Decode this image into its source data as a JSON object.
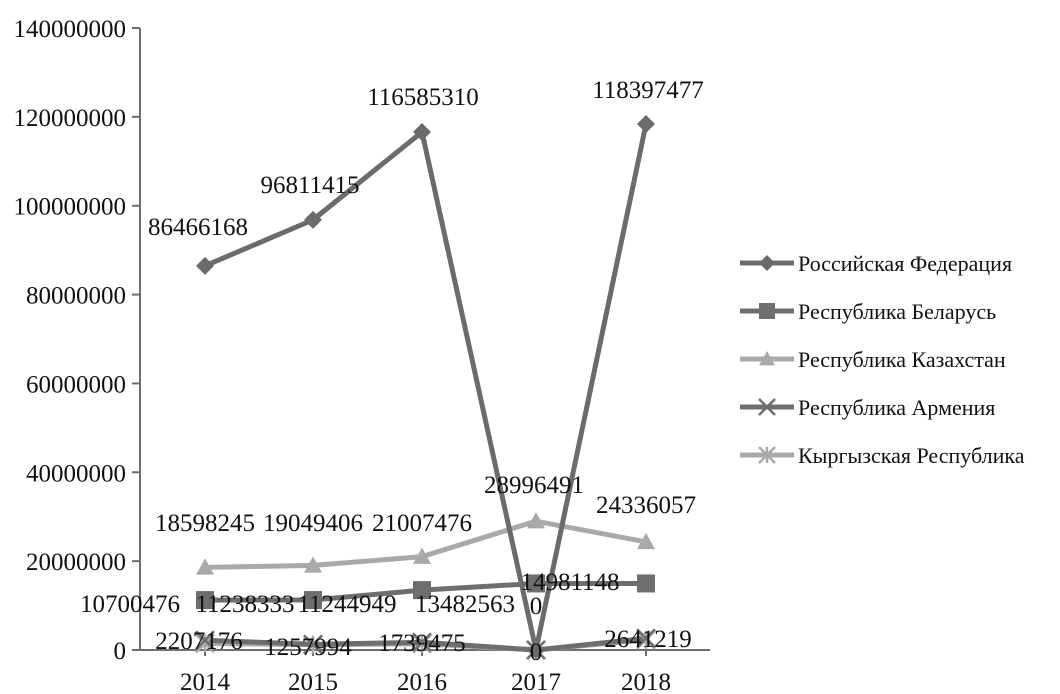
{
  "chart_data": {
    "type": "line",
    "title": "",
    "xlabel": "",
    "ylabel": "",
    "categories": [
      "2014",
      "2015",
      "2016",
      "2017",
      "2018"
    ],
    "ylim": [
      0,
      140000000
    ],
    "yticks": [
      0,
      20000000,
      40000000,
      60000000,
      80000000,
      100000000,
      120000000,
      140000000
    ],
    "ytick_labels": [
      "0",
      "20000000",
      "40000000",
      "60000000",
      "80000000",
      "100000000",
      "120000000",
      "140000000"
    ],
    "grid": false,
    "legend_position": "right",
    "series": [
      {
        "name": "Российская Федерация",
        "values": [
          86466168,
          96811415,
          116585310,
          0,
          118397477
        ],
        "data_labels": [
          "86466168",
          "96811415",
          "116585310",
          "",
          "118397477"
        ],
        "color": "#6b6b6b",
        "marker": "diamond"
      },
      {
        "name": "Республика Беларусь",
        "values": [
          11238333,
          11244949,
          13482563,
          14981148,
          14981148
        ],
        "data_labels": [
          "11238333",
          "11244949",
          "13482563",
          "14981148",
          ""
        ],
        "color": "#6e6e6e",
        "marker": "square"
      },
      {
        "name": "Республика Казахстан",
        "values": [
          18598245,
          19049406,
          21007476,
          28996491,
          24336057
        ],
        "data_labels": [
          "18598245",
          "19049406",
          "21007476",
          "28996491",
          "24336057"
        ],
        "color": "#a9a9a9",
        "marker": "triangle"
      },
      {
        "name": "Республика Армения",
        "values": [
          2207176,
          1257994,
          1739475,
          0,
          2641219
        ],
        "data_labels": [
          "2207176",
          "1257994",
          "1739475",
          "0",
          "2641219"
        ],
        "color": "#6e6e6e",
        "marker": "x"
      },
      {
        "name": "Кыргызская Республика",
        "values": [
          1500000,
          1200000,
          1400000,
          0,
          2300000
        ],
        "data_labels": [
          "",
          "",
          "",
          "0",
          ""
        ],
        "color": "#a9a9a9",
        "marker": "asterisk"
      }
    ],
    "extra_labels": [
      "10700476"
    ]
  }
}
